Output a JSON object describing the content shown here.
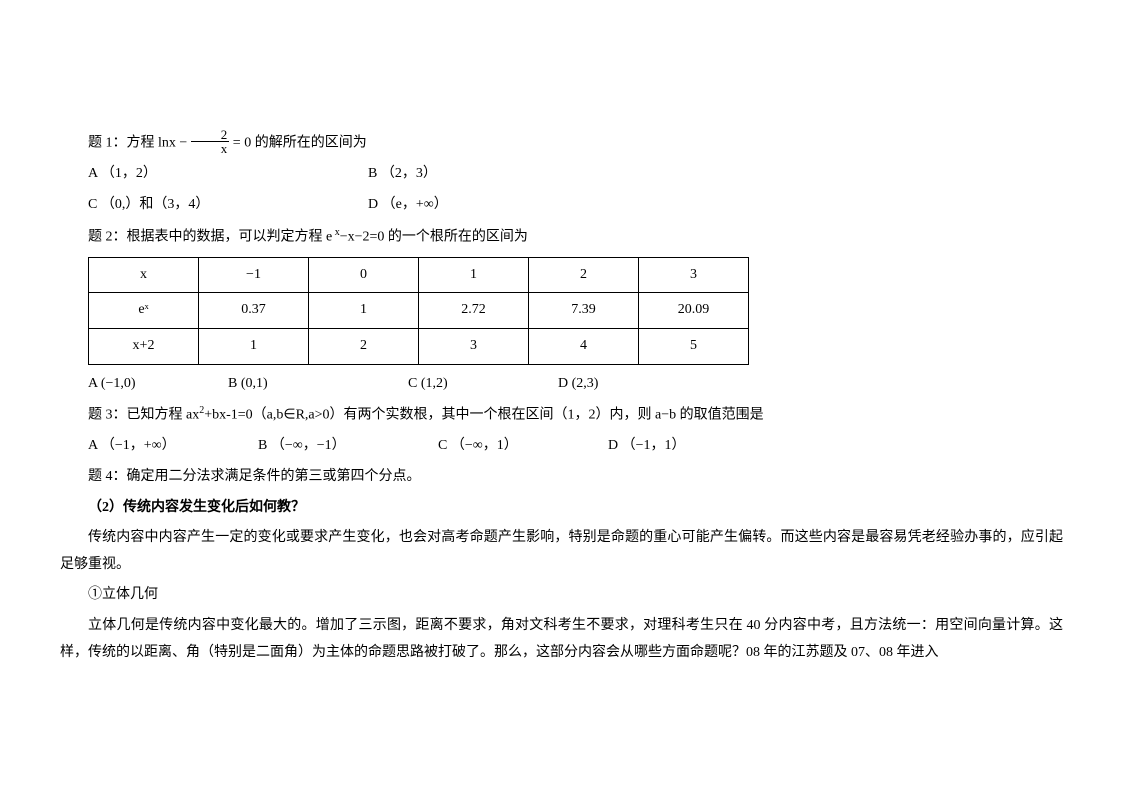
{
  "q1": {
    "prefix": "题 1：方程 lnx − ",
    "frac_num": "2",
    "frac_den": "x",
    "suffix": "  = 0  的解所在的区间为",
    "optA": "A （1，2）",
    "optB": "B （2，3）",
    "optC": "C （0,）和（3，4）",
    "optD": "D （e，+∞）"
  },
  "q2": {
    "stem_pre": "题 2：根据表中的数据，可以判定方程 e",
    "stem_sup": " x",
    "stem_post": "−x−2=0 的一个根所在的区间为",
    "table": {
      "headers": [
        "x",
        "−1",
        "0",
        "1",
        "2",
        "3"
      ],
      "row_ex_label": "eˣ",
      "row_ex": [
        "0.37",
        "1",
        "2.72",
        "7.39",
        "20.09"
      ],
      "row_x2_label": "x+2",
      "row_x2": [
        "1",
        "2",
        "3",
        "4",
        "5"
      ]
    },
    "optA": "A (−1,0)",
    "optB": "B (0,1)",
    "optC": "C (1,2)",
    "optD": "D (2,3)"
  },
  "q3": {
    "stem_pre": "题 3：已知方程 ax",
    "stem_sup": "2",
    "stem_post": "+bx-1=0（a,b∈R,a>0）有两个实数根，其中一个根在区间（1，2）内，则 a−b 的取值范围是",
    "optA": "A （−1，+∞）",
    "optB": "B （−∞，−1）",
    "optC": "C （−∞，1）",
    "optD": "D （−1，1）"
  },
  "q4": {
    "stem": "题 4：确定用二分法求满足条件的第三或第四个分点。"
  },
  "section": {
    "heading": "（2）传统内容发生变化后如何教？",
    "para1": "传统内容中内容产生一定的变化或要求产生变化，也会对高考命题产生影响，特别是命题的重心可能产生偏转。而这些内容是最容易凭老经验办事的，应引起足够重视。",
    "sub1": "①立体几何",
    "para2": "立体几何是传统内容中变化最大的。增加了三示图，距离不要求，角对文科考生不要求，对理科考生只在 40 分内容中考，且方法统一：用空间向量计算。这样，传统的以距离、角（特别是二面角）为主体的命题思路被打破了。那么，这部分内容会从哪些方面命题呢？08 年的江苏题及 07、08 年进入"
  },
  "style": {
    "body_font_size": 14,
    "text_color": "#000000",
    "bg_color": "#ffffff",
    "table_border_color": "#000000",
    "table_cell_width": 110
  }
}
